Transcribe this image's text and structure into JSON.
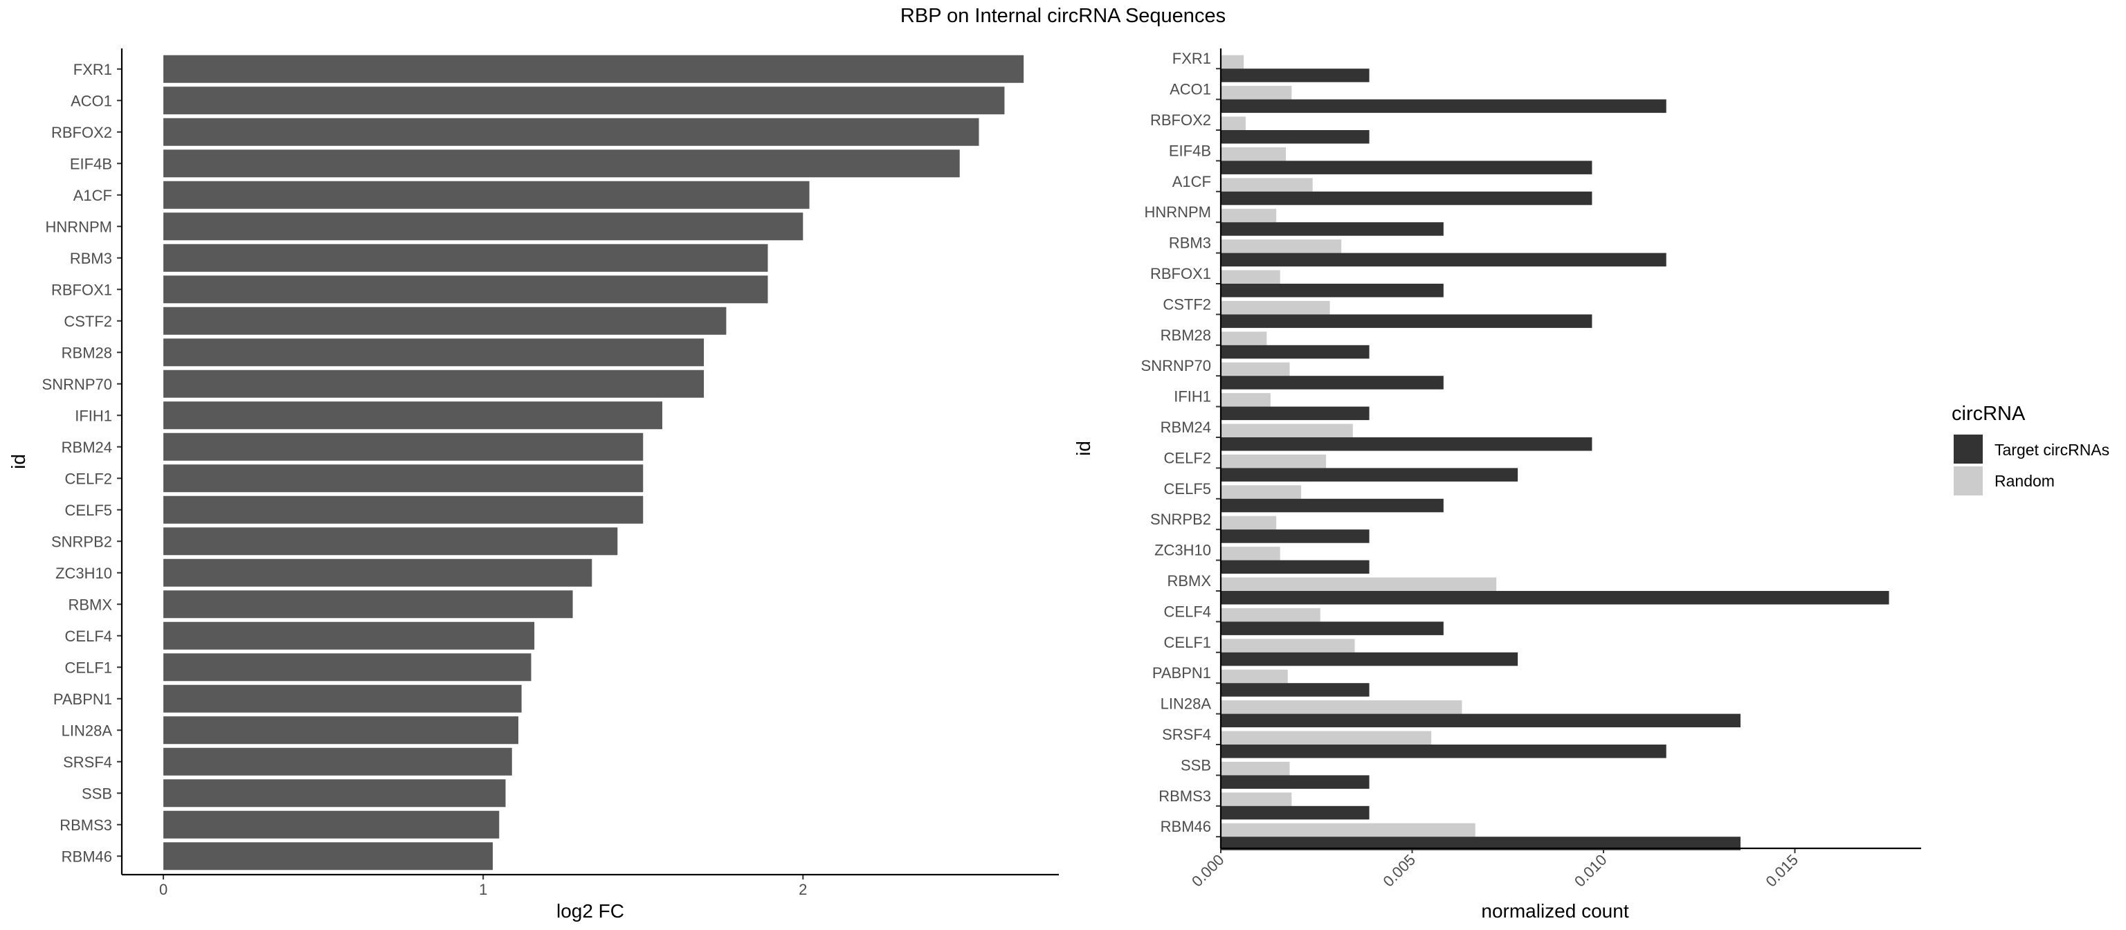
{
  "figure": {
    "title": "RBP on Internal circRNA Sequences"
  },
  "colors": {
    "left_bar": "#595959",
    "target": "#333333",
    "random": "#cccccc",
    "axis": "#000000",
    "tick_text": "#4d4d4d",
    "label_text": "#000000"
  },
  "chart_data": [
    {
      "type": "bar",
      "orientation": "horizontal",
      "xlabel": "log2 FC",
      "ylabel": "id",
      "xlim": [
        -0.13,
        2.8
      ],
      "xticks": [
        0,
        1,
        2
      ],
      "grid": false,
      "categories": [
        "FXR1",
        "ACO1",
        "RBFOX2",
        "EIF4B",
        "A1CF",
        "HNRNPM",
        "RBM3",
        "RBFOX1",
        "CSTF2",
        "RBM28",
        "SNRNP70",
        "IFIH1",
        "RBM24",
        "CELF2",
        "CELF5",
        "SNRPB2",
        "ZC3H10",
        "RBMX",
        "CELF4",
        "CELF1",
        "PABPN1",
        "LIN28A",
        "SRSF4",
        "SSB",
        "RBMS3",
        "RBM46"
      ],
      "values": [
        2.69,
        2.63,
        2.55,
        2.49,
        2.02,
        2.0,
        1.89,
        1.89,
        1.76,
        1.69,
        1.69,
        1.56,
        1.5,
        1.5,
        1.5,
        1.42,
        1.34,
        1.28,
        1.16,
        1.15,
        1.12,
        1.11,
        1.09,
        1.07,
        1.05,
        1.03
      ]
    },
    {
      "type": "bar",
      "orientation": "horizontal",
      "grouped": true,
      "xlabel": "normalized count",
      "ylabel": "id",
      "xlim": [
        0,
        0.0183
      ],
      "xticks": [
        "0.000",
        "0.005",
        "0.010",
        "0.015"
      ],
      "grid": false,
      "legend": {
        "title": "circRNA",
        "position": "right"
      },
      "categories": [
        "FXR1",
        "ACO1",
        "RBFOX2",
        "EIF4B",
        "A1CF",
        "HNRNPM",
        "RBM3",
        "RBFOX1",
        "CSTF2",
        "RBM28",
        "SNRNP70",
        "IFIH1",
        "RBM24",
        "CELF2",
        "CELF5",
        "SNRPB2",
        "ZC3H10",
        "RBMX",
        "CELF4",
        "CELF1",
        "PABPN1",
        "LIN28A",
        "SRSF4",
        "SSB",
        "RBMS3",
        "RBM46"
      ],
      "series": [
        {
          "name": "Target circRNAs",
          "values": [
            0.00388,
            0.01164,
            0.00388,
            0.0097,
            0.0097,
            0.00582,
            0.01164,
            0.00582,
            0.0097,
            0.00388,
            0.00582,
            0.00388,
            0.0097,
            0.00776,
            0.00582,
            0.00388,
            0.00388,
            0.01746,
            0.00582,
            0.00776,
            0.00388,
            0.01358,
            0.01164,
            0.00388,
            0.00388,
            0.01358
          ]
        },
        {
          "name": "Random",
          "values": [
            0.0006,
            0.00185,
            0.00065,
            0.0017,
            0.0024,
            0.00145,
            0.00315,
            0.00155,
            0.00285,
            0.0012,
            0.0018,
            0.0013,
            0.00345,
            0.00275,
            0.0021,
            0.00145,
            0.00155,
            0.0072,
            0.0026,
            0.0035,
            0.00175,
            0.0063,
            0.0055,
            0.0018,
            0.00185,
            0.00665
          ]
        }
      ]
    }
  ]
}
